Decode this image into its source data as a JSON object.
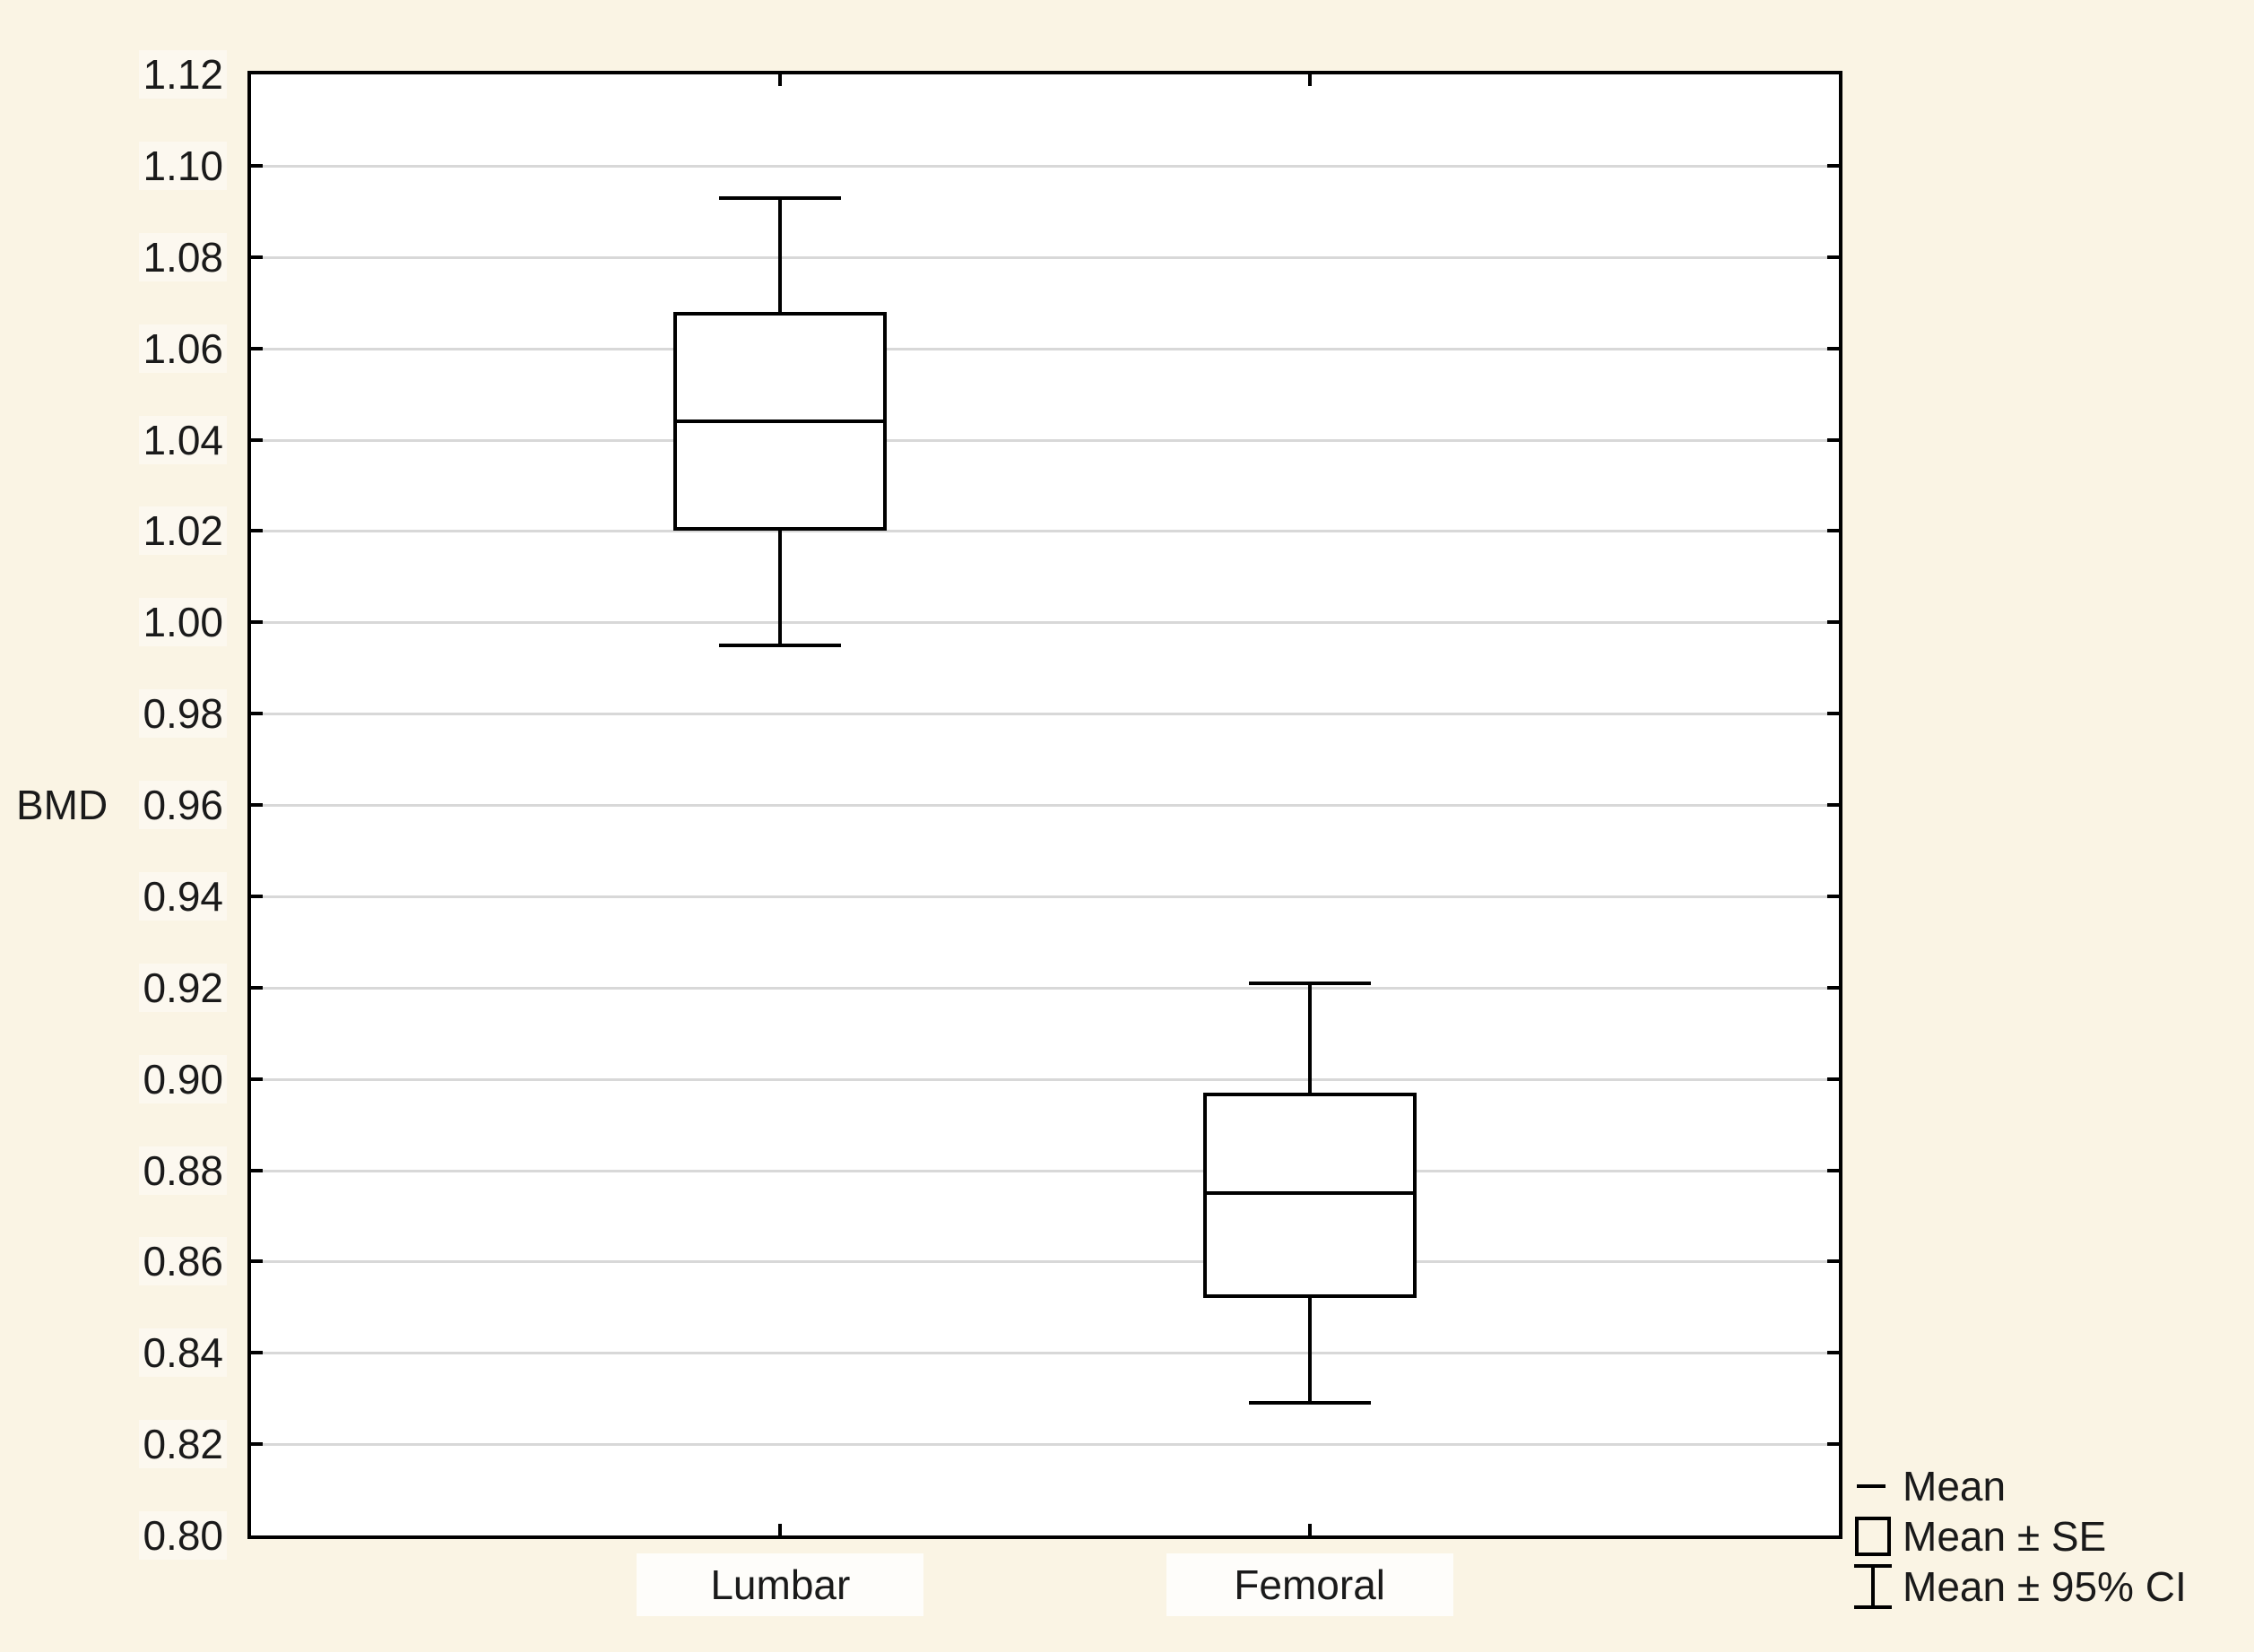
{
  "chart_data": {
    "type": "box",
    "title": "",
    "xlabel": "",
    "ylabel": "BMD",
    "categories": [
      "Lumbar",
      "Femoral"
    ],
    "ylim": [
      0.8,
      1.12
    ],
    "ytick_labels": [
      "1.12",
      "1.10",
      "1.08",
      "1.06",
      "1.04",
      "1.02",
      "1.00",
      "0.98",
      "0.96",
      "0.94",
      "0.92",
      "0.90",
      "0.88",
      "0.86",
      "0.84",
      "0.82",
      "0.80"
    ],
    "grid": true,
    "series": [
      {
        "category": "Lumbar",
        "mean": 1.044,
        "mean_minus_se": 1.02,
        "mean_plus_se": 1.068,
        "ci_low": 0.995,
        "ci_high": 1.093
      },
      {
        "category": "Femoral",
        "mean": 0.875,
        "mean_minus_se": 0.852,
        "mean_plus_se": 0.897,
        "ci_low": 0.829,
        "ci_high": 0.921
      }
    ],
    "legend": {
      "position": "bottom-right",
      "items": [
        {
          "glyph": "mean-dash",
          "label": "Mean"
        },
        {
          "glyph": "se-box",
          "label": "Mean ± SE"
        },
        {
          "glyph": "ci-whisker",
          "label": "Mean ± 95% CI"
        }
      ]
    },
    "colors": {
      "page_bg": "#faf4e4",
      "plot_bg": "#ffffff",
      "grid_line": "#d8d8d8",
      "stroke": "#000000",
      "text": "#1a1a1a"
    }
  }
}
